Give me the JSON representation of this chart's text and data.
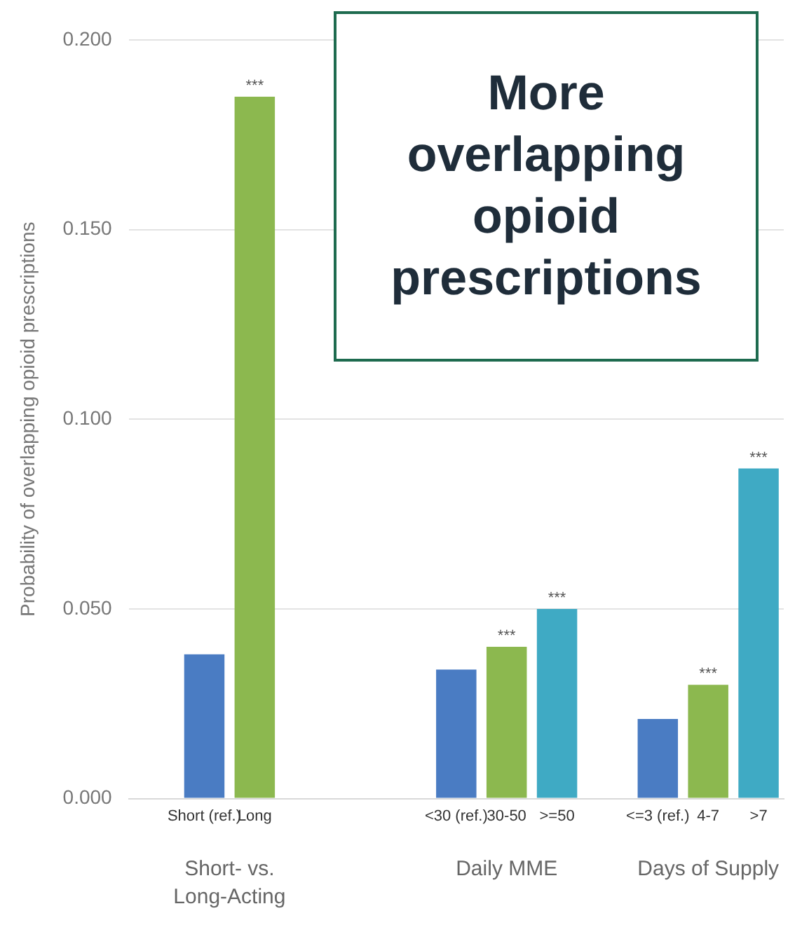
{
  "chart_data": {
    "type": "bar",
    "title": "More overlapping opioid prescriptions",
    "ylabel": "Probability of overlapping opioid prescriptions",
    "categories": [
      null,
      "Short (ref.)",
      "Long",
      null,
      null,
      null,
      "<30 (ref.)",
      "30-50",
      ">=50",
      null,
      "<=3 (ref.)",
      "4-7",
      ">7"
    ],
    "values": [
      null,
      0.038,
      0.185,
      null,
      null,
      null,
      0.034,
      0.04,
      0.05,
      null,
      0.021,
      0.03,
      0.087
    ],
    "colors": [
      null,
      "#4a7cc3",
      "#8cb84f",
      null,
      null,
      null,
      "#4a7cc3",
      "#8cb84f",
      "#3faac4",
      null,
      "#4a7cc3",
      "#8cb84f",
      "#3faac4"
    ],
    "ylim": [
      0,
      0.2
    ],
    "yticks": [
      {
        "value": 0,
        "label": "0.000"
      },
      {
        "value": 0.05,
        "label": "0.050"
      },
      {
        "value": 0.1,
        "label": "0.100"
      },
      {
        "value": 0.15,
        "label": "0.150"
      },
      {
        "value": 0.2,
        "label": "0.200"
      }
    ],
    "grid": "y",
    "annotations": [
      "Short- vs. Long-Acting",
      "Daily MME",
      "Days of Supply",
      {
        "text": "***",
        "x": "Long",
        "y": 0.185
      },
      {
        "text": "***",
        "x": "30-50",
        "y": 0.04
      },
      {
        "text": "***",
        "x": ">=50",
        "y": 0.05
      },
      {
        "text": "***",
        "x": "4-7",
        "y": 0.03
      },
      {
        "text": "***",
        "x": ">7",
        "y": 0.087
      }
    ]
  }
}
